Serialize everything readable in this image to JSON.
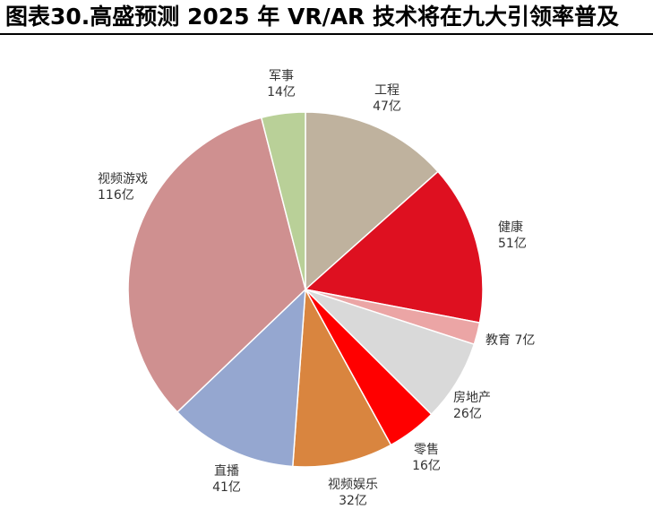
{
  "title": "图表30.高盛预测 2025 年 VR/AR 技术将在九大引领率普及",
  "chart_data": {
    "type": "pie",
    "unit": "亿",
    "slices": [
      {
        "name": "工程",
        "value": 47,
        "value_label": "47亿",
        "color": "#bfb29e"
      },
      {
        "name": "健康",
        "value": 51,
        "value_label": "51亿",
        "color": "#de1020"
      },
      {
        "name": "教育",
        "value": 7,
        "value_label": "7亿",
        "color": "#eba5a5"
      },
      {
        "name": "房地产",
        "value": 26,
        "value_label": "26亿",
        "color": "#d9d9d9"
      },
      {
        "name": "零售",
        "value": 16,
        "value_label": "16亿",
        "color": "#ff0000"
      },
      {
        "name": "视频娱乐",
        "value": 32,
        "value_label": "32亿",
        "color": "#d9853f"
      },
      {
        "name": "直播",
        "value": 41,
        "value_label": "41亿",
        "color": "#95a7d0"
      },
      {
        "name": "视频游戏",
        "value": 116,
        "value_label": "116亿",
        "color": "#cf9090"
      },
      {
        "name": "军事",
        "value": 14,
        "value_label": "14亿",
        "color": "#b9d098"
      }
    ]
  }
}
